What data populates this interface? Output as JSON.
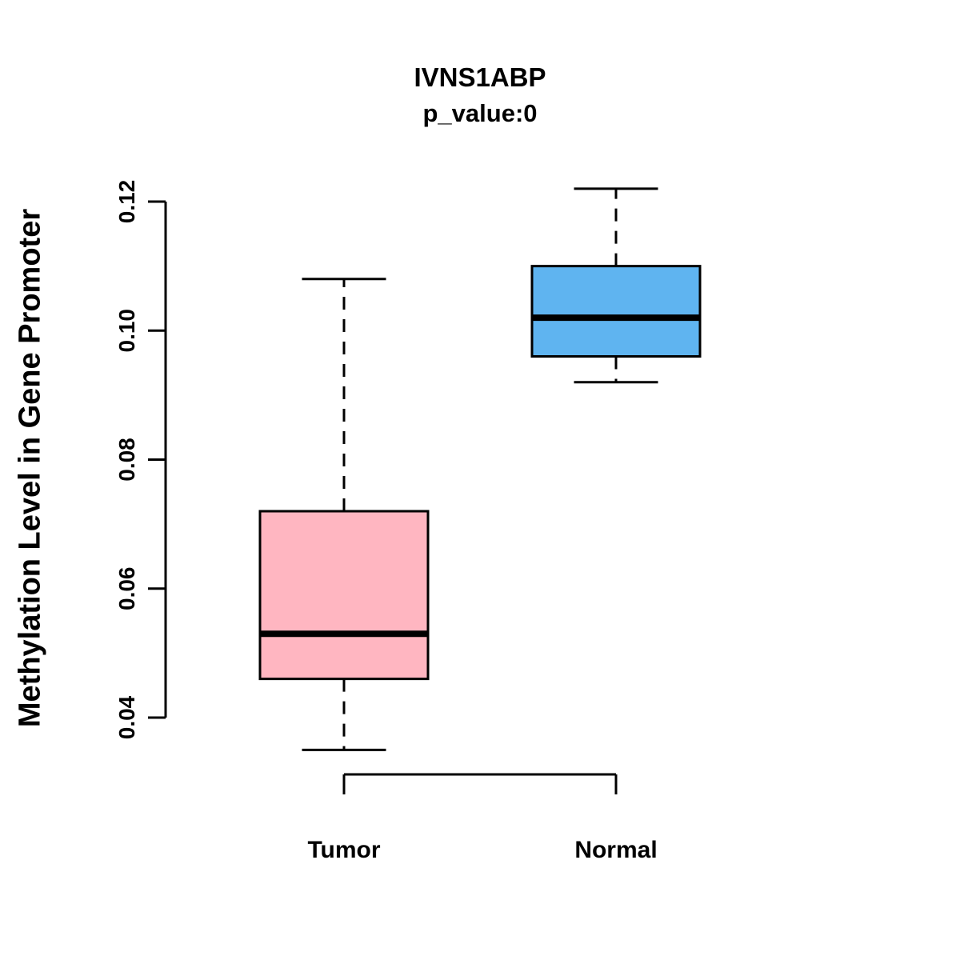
{
  "chart_data": {
    "type": "boxplot",
    "title": "IVNS1ABP",
    "subtitle": "p_value:0",
    "ylabel": "Methylation Level in Gene Promoter",
    "xlabel": "",
    "categories": [
      "Tumor",
      "Normal"
    ],
    "yticks": [
      0.04,
      0.06,
      0.08,
      0.1,
      0.12
    ],
    "ylim": [
      0.03,
      0.125
    ],
    "grid": false,
    "legend": "none",
    "series": [
      {
        "name": "Tumor",
        "color": "#FFB6C1",
        "whisker_low": 0.035,
        "q1": 0.046,
        "median": 0.053,
        "q3": 0.072,
        "whisker_high": 0.108
      },
      {
        "name": "Normal",
        "color": "#5FB4F0",
        "whisker_low": 0.092,
        "q1": 0.096,
        "median": 0.102,
        "q3": 0.11,
        "whisker_high": 0.122
      }
    ],
    "colors": {
      "box_border": "#000000",
      "median_line": "#000000",
      "axis": "#000000"
    }
  }
}
